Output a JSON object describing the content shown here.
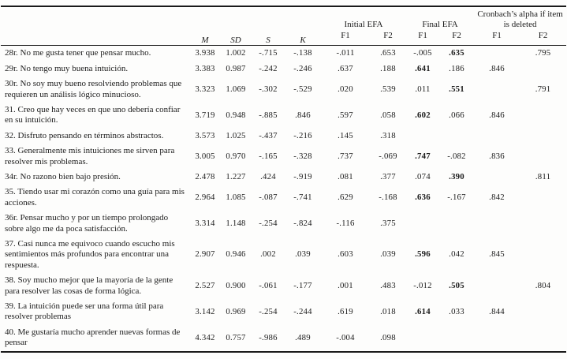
{
  "page": {
    "background": "#fdfdfc",
    "text_color": "#1c1c1c",
    "rule_color": "#1a1a1a"
  },
  "table": {
    "headers": {
      "m": "M",
      "sd": "SD",
      "s": "S",
      "k": "K",
      "initial_efa": "Initial EFA",
      "final_efa": "Final EFA",
      "cronbach": "Cronbach’s alpha if item is deleted",
      "f1": "F1",
      "f2": "F2"
    },
    "rows": [
      {
        "label": "28r. No me gusta tener que pensar mucho.",
        "m": "3.938",
        "sd": "1.002",
        "s": "-.715",
        "k": "-.138",
        "if1": "-.011",
        "if2": ".653",
        "ff1": "-.005",
        "ff2": ".635",
        "cf1": "",
        "cf2": ".795",
        "bold": "ff2"
      },
      {
        "label": "29r. No tengo muy buena intuición.",
        "m": "3.383",
        "sd": "0.987",
        "s": "-.242",
        "k": "-.246",
        "if1": ".637",
        "if2": ".188",
        "ff1": ".641",
        "ff2": ".186",
        "cf1": ".846",
        "cf2": "",
        "bold": "ff1"
      },
      {
        "label": "30r. No soy muy bueno resolviendo problemas que requieren un análisis lógico minucioso.",
        "m": "3.323",
        "sd": "1.069",
        "s": "-.302",
        "k": "-.529",
        "if1": ".020",
        "if2": ".539",
        "ff1": ".011",
        "ff2": ".551",
        "cf1": "",
        "cf2": ".791",
        "bold": "ff2"
      },
      {
        "label": "31. Creo que hay veces en que uno debería confiar en su intuición.",
        "m": "3.719",
        "sd": "0.948",
        "s": "-.885",
        "k": ".846",
        "if1": ".597",
        "if2": ".058",
        "ff1": ".602",
        "ff2": ".066",
        "cf1": ".846",
        "cf2": "",
        "bold": "ff1"
      },
      {
        "label": "32. Disfruto pensando en términos abstractos.",
        "m": "3.573",
        "sd": "1.025",
        "s": "-.437",
        "k": "-.216",
        "if1": ".145",
        "if2": ".318",
        "ff1": "",
        "ff2": "",
        "cf1": "",
        "cf2": "",
        "bold": null
      },
      {
        "label": "33. Generalmente mis intuiciones me sirven para resolver mis problemas.",
        "m": "3.005",
        "sd": "0.970",
        "s": "-.165",
        "k": "-.328",
        "if1": ".737",
        "if2": "-.069",
        "ff1": ".747",
        "ff2": "-.082",
        "cf1": ".836",
        "cf2": "",
        "bold": "ff1"
      },
      {
        "label": "34r. No razono bien bajo presión.",
        "m": "2.478",
        "sd": "1.227",
        "s": ".424",
        "k": "-.919",
        "if1": ".081",
        "if2": ".377",
        "ff1": ".074",
        "ff2": ".390",
        "cf1": "",
        "cf2": ".811",
        "bold": "ff2"
      },
      {
        "label": "35. Tiendo usar mi corazón como una guía para mis acciones.",
        "m": "2.964",
        "sd": "1.085",
        "s": "-.087",
        "k": "-.741",
        "if1": ".629",
        "if2": "-.168",
        "ff1": ".636",
        "ff2": "-.167",
        "cf1": ".842",
        "cf2": "",
        "bold": "ff1"
      },
      {
        "label": "36r. Pensar mucho y por un tiempo prolongado sobre algo me da poca satisfacción.",
        "m": "3.314",
        "sd": "1.148",
        "s": "-.254",
        "k": "-.824",
        "if1": "-.116",
        "if2": ".375",
        "ff1": "",
        "ff2": "",
        "cf1": "",
        "cf2": "",
        "bold": null
      },
      {
        "label": "37. Casi nunca me equivoco cuando escucho mis sentimientos más profundos para encontrar una respuesta.",
        "m": "2.907",
        "sd": "0.946",
        "s": ".002",
        "k": ".039",
        "if1": ".603",
        "if2": ".039",
        "ff1": ".596",
        "ff2": ".042",
        "cf1": ".845",
        "cf2": "",
        "bold": "ff1"
      },
      {
        "label": "38. Soy mucho mejor que la mayoría de la gente para resolver las cosas de forma lógica.",
        "m": "2.527",
        "sd": "0.900",
        "s": "-.061",
        "k": "-.177",
        "if1": ".001",
        "if2": ".483",
        "ff1": "-.012",
        "ff2": ".505",
        "cf1": "",
        "cf2": ".804",
        "bold": "ff2"
      },
      {
        "label": "39. La intuición puede ser una forma útil para resolver problemas",
        "m": "3.142",
        "sd": "0.969",
        "s": "-.254",
        "k": "-.244",
        "if1": ".619",
        "if2": ".018",
        "ff1": ".614",
        "ff2": ".033",
        "cf1": ".844",
        "cf2": "",
        "bold": "ff1"
      },
      {
        "label": "40. Me gustaría mucho aprender nuevas formas de pensar",
        "m": "4.342",
        "sd": "0.757",
        "s": "-.986",
        "k": ".489",
        "if1": "-.004",
        "if2": ".098",
        "ff1": "",
        "ff2": "",
        "cf1": "",
        "cf2": "",
        "bold": null
      }
    ]
  }
}
